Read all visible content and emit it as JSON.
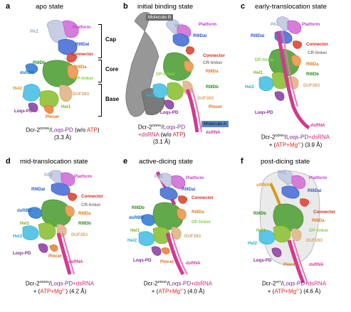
{
  "colors": {
    "PAZ": "#9aa6c8",
    "Platform": "#c040c8",
    "RIIIDai": "#2c55c8",
    "Connector": "#d42a1c",
    "CR-linker": "#7f7f7f",
    "RIIIDa": "#e07a1a",
    "DP-linker": "#88d24e",
    "RIIIDb": "#2a8a1e",
    "Hel1": "#7ab51c",
    "Hel2": "#25b0d8",
    "Pincer": "#e06a1a",
    "DUF283": "#d7a26a",
    "Loqs-PD": "#7a2a8c",
    "dsRNA": "#d13a8e",
    "dsRBD": "#1a6ec8",
    "siRNA": "#d59a1a",
    "MolA": "#5b86c8",
    "MolB": "#6b6b6b"
  },
  "panels": [
    {
      "letter": "a",
      "title": "apo state",
      "brackets": [
        "Cap",
        "Core",
        "Base"
      ],
      "labels": [
        "PAZ",
        "Platform",
        "RIIIDai",
        "Connector",
        "RIIIDb",
        "RIIIDa",
        "dsRBD",
        "DP-linker",
        "Hel2",
        "DUF283",
        "Loqs-PD",
        "Hel1",
        "Pincer"
      ],
      "caption_line1_a": "Dcr-2",
      "caption_line1_sup": "DDNN",
      "caption_line1_b": "/",
      "caption_line1_c": "Loqs-PD",
      "caption_line1_d": " (w/o ",
      "caption_line1_e": "ATP",
      "caption_line1_f": ")",
      "caption_line2": "(3.3 Å)"
    },
    {
      "letter": "b",
      "title": "initial binding state",
      "molecule_b": "Molecule B",
      "molecule_a": "Molecule A",
      "labels": [
        "PAZ",
        "Platform",
        "RIIIDai",
        "Connector",
        "CR-linker",
        "RIIIDa",
        "DP-linker",
        "RIIIDb",
        "Hel2",
        "DUF283",
        "Pincer",
        "Loqs-PD",
        "dsRNA"
      ],
      "caption_line1_a": "Dcr-2",
      "caption_line1_sup": "DDNN",
      "caption_line1_b": "/",
      "caption_line1_c": "Loqs-PD",
      "caption_line2_a": "+",
      "caption_line2_b": "dsRNA",
      "caption_line2_c": " (w/o ",
      "caption_line2_d": "ATP",
      "caption_line2_e": ")",
      "caption_line3": "(3.1 Å)"
    },
    {
      "letter": "c",
      "title": "early-translocation state",
      "labels": [
        "PAZ",
        "Platform",
        "RIIIDai",
        "Connector",
        "CR-linker",
        "DP-linker",
        "RIIIDa",
        "Hel1",
        "RIIIDb",
        "Hel2",
        "DUF283",
        "Loqs-PD",
        "dsRNA"
      ],
      "caption_line1_a": "Dcr-2",
      "caption_line1_sup": "DDNN",
      "caption_line1_b": "/",
      "caption_line1_c": "Loqs-PD",
      "caption_line1_d": "+",
      "caption_line1_e": "dsRNA",
      "caption_line2_a": "+ (",
      "caption_line2_b": "ATP+Mg",
      "caption_line2_sup": "2+",
      "caption_line2_c": ")",
      "caption_line2_d": "  (3.9 Å)"
    },
    {
      "letter": "d",
      "title": "mid-translocation state",
      "labels": [
        "PAZ",
        "Platform",
        "RIIIDai",
        "Connector",
        "CR-linker",
        "dsRBD",
        "RIIIDa",
        "RIIIDb",
        "Hel1",
        "Hel2",
        "DUF283",
        "Loqs-PD",
        "Pincer",
        "dsRNA"
      ],
      "caption_line1_a": "Dcr-2",
      "caption_line1_sup": "DDNN",
      "caption_line1_b": "/",
      "caption_line1_c": "Loqs-PD",
      "caption_line1_d": "+",
      "caption_line1_e": "dsRNA",
      "caption_line2_a": "+ (",
      "caption_line2_b": "ATP+Mg",
      "caption_line2_sup": "2+",
      "caption_line2_c": ")",
      "caption_line2_d": " (4.2 Å)"
    },
    {
      "letter": "e",
      "title": "active-dicing state",
      "labels": [
        "PAZ",
        "Platform",
        "RIIIDai",
        "Connector",
        "RIIIDb",
        "RIIIDa",
        "dsRBD",
        "DP-linker",
        "Hel1",
        "Hel2",
        "DUF283",
        "Loqs-PD",
        "Pincer",
        "dsRNA"
      ],
      "caption_line1_a": "Dcr-2",
      "caption_line1_sup": "DDNN",
      "caption_line1_b": "/",
      "caption_line1_c": "Loqs-PD",
      "caption_line1_d": "+",
      "caption_line1_e": "dsRNA",
      "caption_line2_a": "+ (",
      "caption_line2_b": "ATP+Mg",
      "caption_line2_sup": "2+",
      "caption_line2_c": ")",
      "caption_line2_d": " (4.0 Å)"
    },
    {
      "letter": "f",
      "title": "post-dicing state",
      "labels": [
        "PAZ",
        "siRNA",
        "Platform",
        "RIIIDai",
        "RIIIDb",
        "Connector",
        "RIIIDa",
        "DP-linker",
        "Hel1",
        "Hel2",
        "DUF283",
        "Loqs-PD",
        "Pincer",
        "dsRNA"
      ],
      "caption_line1_a": "Dcr-2",
      "caption_line1_sup": "WT",
      "caption_line1_b": "/",
      "caption_line1_c": "Loqs-PD",
      "caption_line1_d": "+",
      "caption_line1_e": "dsRNA",
      "caption_line2_a": "+ (",
      "caption_line2_b": "ATP+Mg",
      "caption_line2_sup": "2+",
      "caption_line2_c": ")",
      "caption_line2_d": " (4.6 Å)"
    }
  ]
}
